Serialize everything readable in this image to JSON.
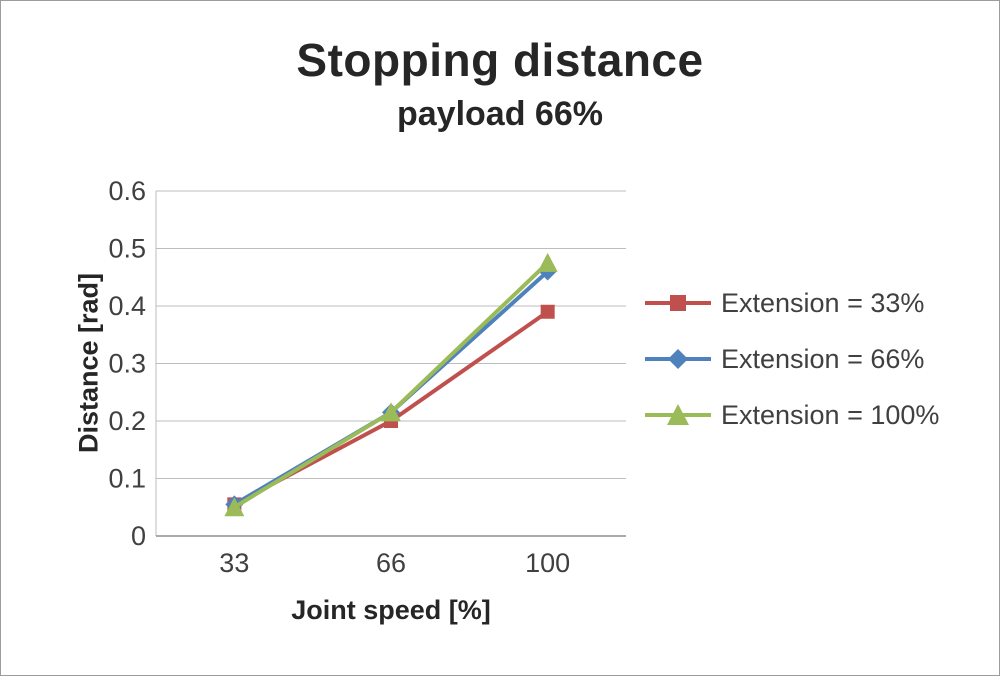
{
  "page": {
    "background": "#ffffff",
    "border_color": "#9c9c9c"
  },
  "chart_data": {
    "type": "line",
    "title": "Stopping distance",
    "subtitle": "payload 66%",
    "xlabel": "Joint speed [%]",
    "ylabel": "Distance [rad]",
    "categories": [
      "33",
      "66",
      "100"
    ],
    "series": [
      {
        "name": "Extension = 33%",
        "values": [
          0.055,
          0.2,
          0.39
        ],
        "color": "#c0504d",
        "marker": "square"
      },
      {
        "name": "Extension = 66%",
        "values": [
          0.055,
          0.215,
          0.46
        ],
        "color": "#4f81bd",
        "marker": "diamond"
      },
      {
        "name": "Extension = 100%",
        "values": [
          0.05,
          0.215,
          0.475
        ],
        "color": "#9bbb59",
        "marker": "triangle"
      }
    ],
    "ylim": [
      0,
      0.6
    ],
    "ytick_step": 0.1,
    "ytick_labels": [
      "0",
      "0.1",
      "0.2",
      "0.3",
      "0.4",
      "0.5",
      "0.6"
    ],
    "grid": true,
    "legend_position": "right",
    "grid_color": "#bdbdbd",
    "axis_color": "#8e8e8e",
    "tick_label_color": "#404040"
  }
}
